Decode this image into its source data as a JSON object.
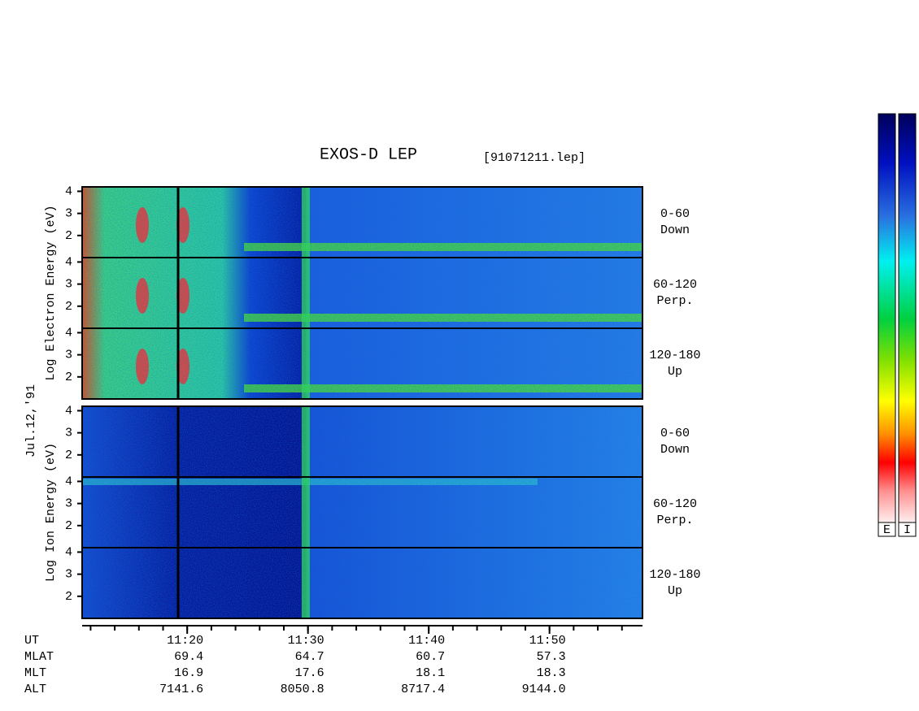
{
  "chart_data": {
    "type": "spectrogram",
    "title": "EXOS-D LEP",
    "file": "[91071211.lep]",
    "date": "Jul.12,'91",
    "groups": [
      {
        "label": "Log  Electron  Energy  (eV)",
        "panels": [
          {
            "angle": "0-60",
            "direction": "Down"
          },
          {
            "angle": "60-120",
            "direction": "Perp."
          },
          {
            "angle": "120-180",
            "direction": "Up"
          }
        ]
      },
      {
        "label": "Log  Ion  Energy  (eV)",
        "panels": [
          {
            "angle": "0-60",
            "direction": "Down"
          },
          {
            "angle": "60-120",
            "direction": "Perp."
          },
          {
            "angle": "120-180",
            "direction": "Up"
          }
        ]
      }
    ],
    "ylim": [
      1,
      4.2
    ],
    "yticks": [
      2,
      3,
      4
    ],
    "xlim": [
      671.3,
      717.7
    ],
    "xticks": [
      {
        "value": 680,
        "label": "11:20"
      },
      {
        "value": 690,
        "label": "11:30"
      },
      {
        "value": 700,
        "label": "11:40"
      },
      {
        "value": 710,
        "label": "11:50"
      }
    ],
    "xminorticks": [
      672,
      674,
      676,
      678,
      680,
      682,
      684,
      686,
      688,
      690,
      692,
      694,
      696,
      698,
      700,
      702,
      704,
      706,
      708,
      710,
      712,
      714,
      716
    ],
    "x_label": "UT",
    "rows": [
      {
        "name": "MLAT",
        "values": [
          "69.4",
          "64.7",
          "60.7",
          "57.3"
        ]
      },
      {
        "name": "MLT",
        "values": [
          "16.9",
          "17.6",
          "18.1",
          "18.3"
        ]
      },
      {
        "name": "ALT",
        "values": [
          "7141.6",
          "8050.8",
          "8717.4",
          "9144.0"
        ]
      }
    ],
    "colorbars": [
      "E",
      "I"
    ]
  }
}
